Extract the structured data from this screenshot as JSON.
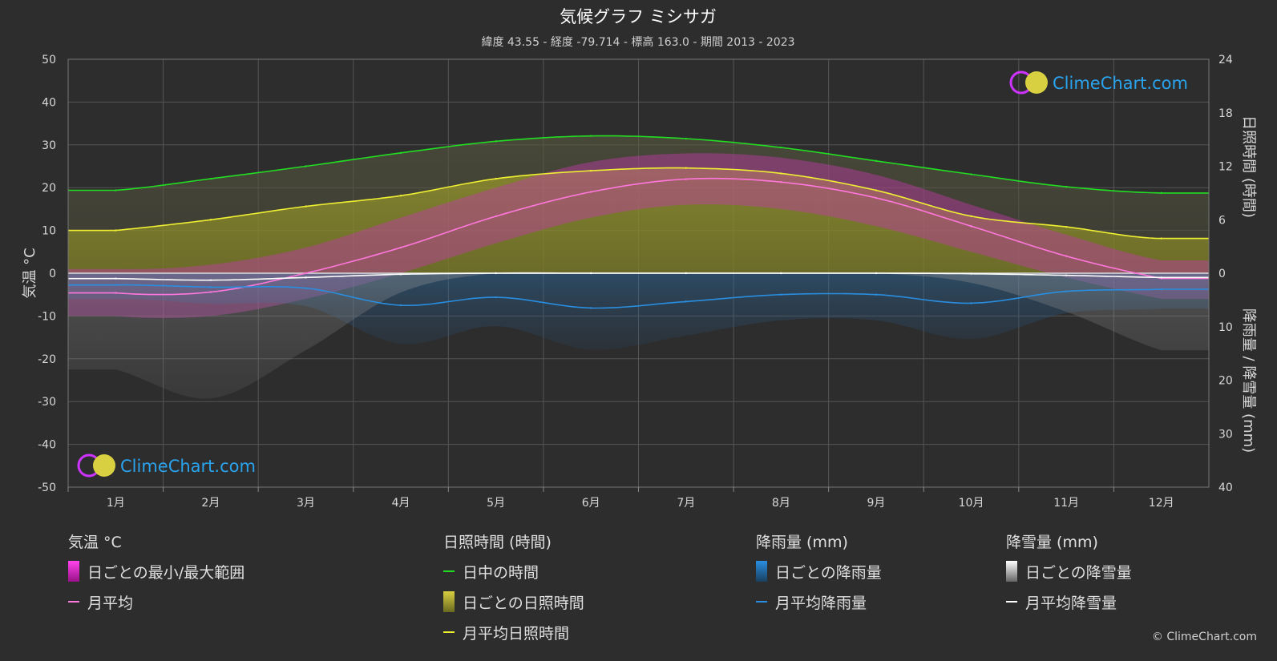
{
  "header": {
    "title": "気候グラフ ミシサガ",
    "subtitle": "緯度 43.55 - 経度 -79.714 - 標高 163.0 - 期間 2013 - 2023"
  },
  "axes": {
    "left_title": "気温 °C",
    "right_top_title": "日照時間 (時間)",
    "right_bottom_title": "降雨量 / 降雪量 (mm)",
    "left_ticks": [
      "50",
      "40",
      "30",
      "20",
      "10",
      "0",
      "-10",
      "-20",
      "-30",
      "-40",
      "-50"
    ],
    "right_top_ticks": [
      "24",
      "18",
      "12",
      "6",
      "0"
    ],
    "right_bottom_ticks": [
      "10",
      "20",
      "30",
      "40"
    ]
  },
  "logo": {
    "text": "ClimeChart.com"
  },
  "chart_data": {
    "type": "area",
    "categories": [
      "1月",
      "2月",
      "3月",
      "4月",
      "5月",
      "6月",
      "7月",
      "8月",
      "9月",
      "10月",
      "11月",
      "12月"
    ],
    "temp_ylim": [
      -50,
      50
    ],
    "sun_ylim": [
      0,
      24
    ],
    "precip_ylim": [
      0,
      40
    ],
    "series": [
      {
        "name": "日中の時間",
        "unit": "時間",
        "values": [
          9.3,
          10.6,
          12.0,
          13.5,
          14.8,
          15.4,
          15.1,
          14.1,
          12.6,
          11.1,
          9.7,
          9.0
        ],
        "color": "#22dd22"
      },
      {
        "name": "月平均日照時間",
        "unit": "時間",
        "values": [
          4.8,
          6.0,
          7.5,
          8.7,
          10.6,
          11.5,
          11.8,
          11.2,
          9.3,
          6.4,
          5.2,
          3.9
        ],
        "color": "#eeee33"
      },
      {
        "name": "月平均",
        "unit": "°C",
        "values": [
          -4.6,
          -4.4,
          0.0,
          6.0,
          13.3,
          19.0,
          22.0,
          21.3,
          17.6,
          11.0,
          4.0,
          -1.2
        ],
        "color": "#ff77dd"
      },
      {
        "name": "月平均降雨量",
        "unit": "mm",
        "values": [
          2.2,
          2.6,
          2.8,
          6.0,
          4.5,
          6.5,
          5.3,
          4.0,
          4.0,
          5.6,
          3.4,
          3.0
        ],
        "color": "#2a8ee0"
      },
      {
        "name": "月平均降雪量",
        "unit": "mm",
        "values": [
          1.0,
          1.3,
          0.8,
          0.2,
          0.0,
          0.0,
          0.0,
          0.0,
          0.0,
          0.1,
          0.4,
          0.8
        ],
        "color": "#ffffff"
      }
    ],
    "daily_temp_range_approx": {
      "max": [
        1,
        2,
        6,
        13,
        20,
        26,
        28,
        27,
        23,
        16,
        9,
        3
      ],
      "min": [
        -10,
        -10,
        -6,
        0,
        7,
        13,
        16,
        15,
        11,
        5,
        -1,
        -6
      ]
    }
  },
  "legend": {
    "temp": {
      "title": "気温 °C",
      "range": "日ごとの最小/最大範囲",
      "avg": "月平均",
      "range_color": "#dd22cc",
      "avg_color": "#ff77dd"
    },
    "sun": {
      "title": "日照時間 (時間)",
      "daylight": "日中の時間",
      "daily": "日ごとの日照時間",
      "avg": "月平均日照時間",
      "daylight_color": "#22dd22",
      "daily_color": "#cccc33",
      "avg_color": "#eeee33"
    },
    "rain": {
      "title": "降雨量 (mm)",
      "daily": "日ごとの降雨量",
      "avg": "月平均降雨量",
      "color": "#2a8ee0"
    },
    "snow": {
      "title": "降雪量 (mm)",
      "daily": "日ごとの降雪量",
      "avg": "月平均降雪量",
      "color": "#ffffff"
    }
  },
  "copyright": "© ClimeChart.com"
}
